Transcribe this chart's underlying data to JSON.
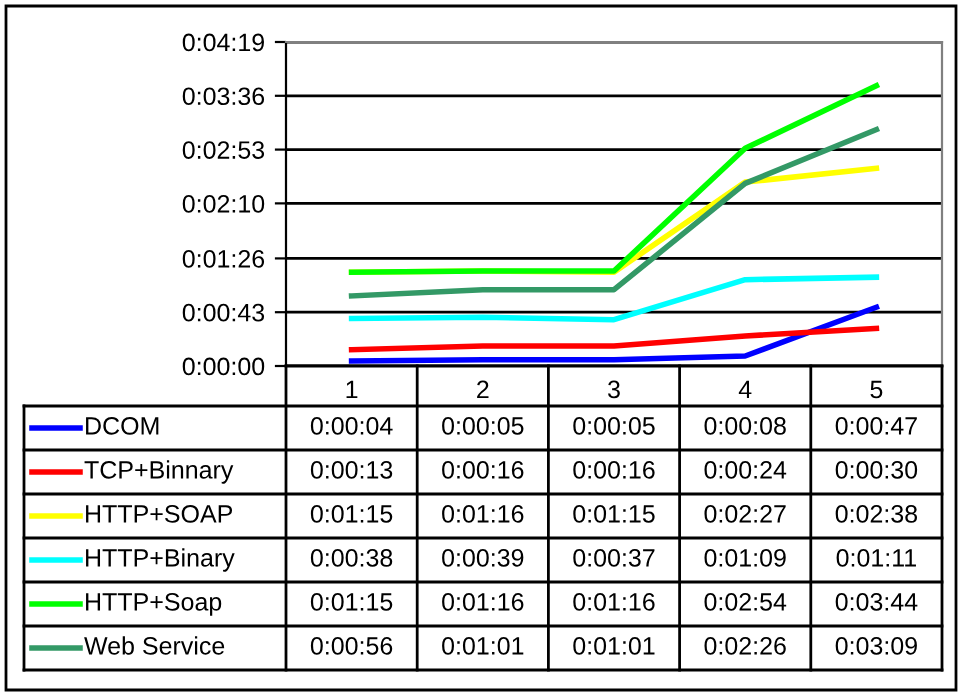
{
  "chart_data": {
    "type": "line",
    "categories": [
      "1",
      "2",
      "3",
      "4",
      "5"
    ],
    "ylim": [
      0,
      259
    ],
    "yticks": [
      {
        "value": 0,
        "label": "0:00:00"
      },
      {
        "value": 43,
        "label": "0:00:43"
      },
      {
        "value": 86,
        "label": "0:01:26"
      },
      {
        "value": 130,
        "label": "0:02:10"
      },
      {
        "value": 173,
        "label": "0:02:53"
      },
      {
        "value": 216,
        "label": "0:03:36"
      },
      {
        "value": 259,
        "label": "0:04:19"
      }
    ],
    "grid": "y",
    "legend": "bottom",
    "series": [
      {
        "name": "DCOM",
        "color": "#0000ff",
        "values": [
          4,
          5,
          5,
          8,
          47
        ],
        "value_labels": [
          "0:00:04",
          "0:00:05",
          "0:00:05",
          "0:00:08",
          "0:00:47"
        ]
      },
      {
        "name": "TCP+Binnary",
        "color": "#ff0000",
        "values": [
          13,
          16,
          16,
          24,
          30
        ],
        "value_labels": [
          "0:00:13",
          "0:00:16",
          "0:00:16",
          "0:00:24",
          "0:00:30"
        ]
      },
      {
        "name": "HTTP+SOAP",
        "color": "#ffff00",
        "values": [
          75,
          76,
          75,
          147,
          158
        ],
        "value_labels": [
          "0:01:15",
          "0:01:16",
          "0:01:15",
          "0:02:27",
          "0:02:38"
        ]
      },
      {
        "name": "HTTP+Binary",
        "color": "#00ffff",
        "values": [
          38,
          39,
          37,
          69,
          71
        ],
        "value_labels": [
          "0:00:38",
          "0:00:39",
          "0:00:37",
          "0:01:09",
          "0:01:11"
        ]
      },
      {
        "name": "HTTP+Soap",
        "color": "#00ff00",
        "values": [
          75,
          76,
          76,
          174,
          224
        ],
        "value_labels": [
          "0:01:15",
          "0:01:16",
          "0:01:16",
          "0:02:54",
          "0:03:44"
        ]
      },
      {
        "name": "Web Service",
        "color": "#339966",
        "values": [
          56,
          61,
          61,
          146,
          189
        ],
        "value_labels": [
          "0:00:56",
          "0:01:01",
          "0:01:01",
          "0:02:26",
          "0:03:09"
        ]
      }
    ]
  }
}
